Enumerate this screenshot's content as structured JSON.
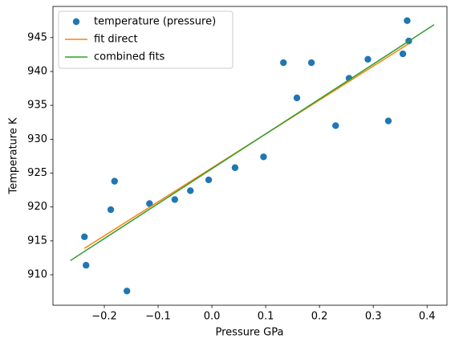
{
  "chart_data": {
    "type": "scatter",
    "xlabel": "Pressure GPa",
    "ylabel": "Temperature K",
    "xlim": [
      -0.2955,
      0.437
    ],
    "ylim": [
      905.5,
      949.6
    ],
    "xticks": [
      {
        "value": -0.2,
        "label": "−0.2"
      },
      {
        "value": -0.1,
        "label": "−0.1"
      },
      {
        "value": 0,
        "label": "0.0"
      },
      0.1,
      0.2,
      0.3,
      0.4
    ],
    "yticks": [
      910,
      915,
      920,
      925,
      930,
      935,
      940,
      945
    ],
    "legend": "upper left",
    "series": [
      {
        "name": "temperature (pressure)",
        "color": "#1f77b4",
        "mode": "markers",
        "x": [
          -0.237,
          -0.234,
          -0.188,
          -0.181,
          -0.158,
          -0.116,
          -0.069,
          -0.04,
          -0.006,
          0.043,
          0.096,
          0.133,
          0.158,
          0.185,
          0.23,
          0.255,
          0.29,
          0.328,
          0.355,
          0.363,
          0.366
        ],
        "values": [
          915.6,
          911.4,
          919.6,
          923.8,
          907.6,
          920.5,
          921.1,
          922.4,
          924.0,
          925.8,
          927.4,
          941.3,
          936.1,
          941.3,
          932.0,
          939.0,
          941.8,
          932.7,
          942.6,
          947.5,
          944.5
        ]
      },
      {
        "name": "fit direct",
        "color": "#ff7f0e",
        "mode": "line",
        "x": [
          -0.237,
          0.366
        ],
        "values": [
          913.9,
          944.1
        ]
      },
      {
        "name": "combined fits",
        "color": "#2ca02c",
        "mode": "line",
        "x": [
          -0.263,
          0.413
        ],
        "values": [
          912.1,
          946.9
        ]
      }
    ]
  }
}
